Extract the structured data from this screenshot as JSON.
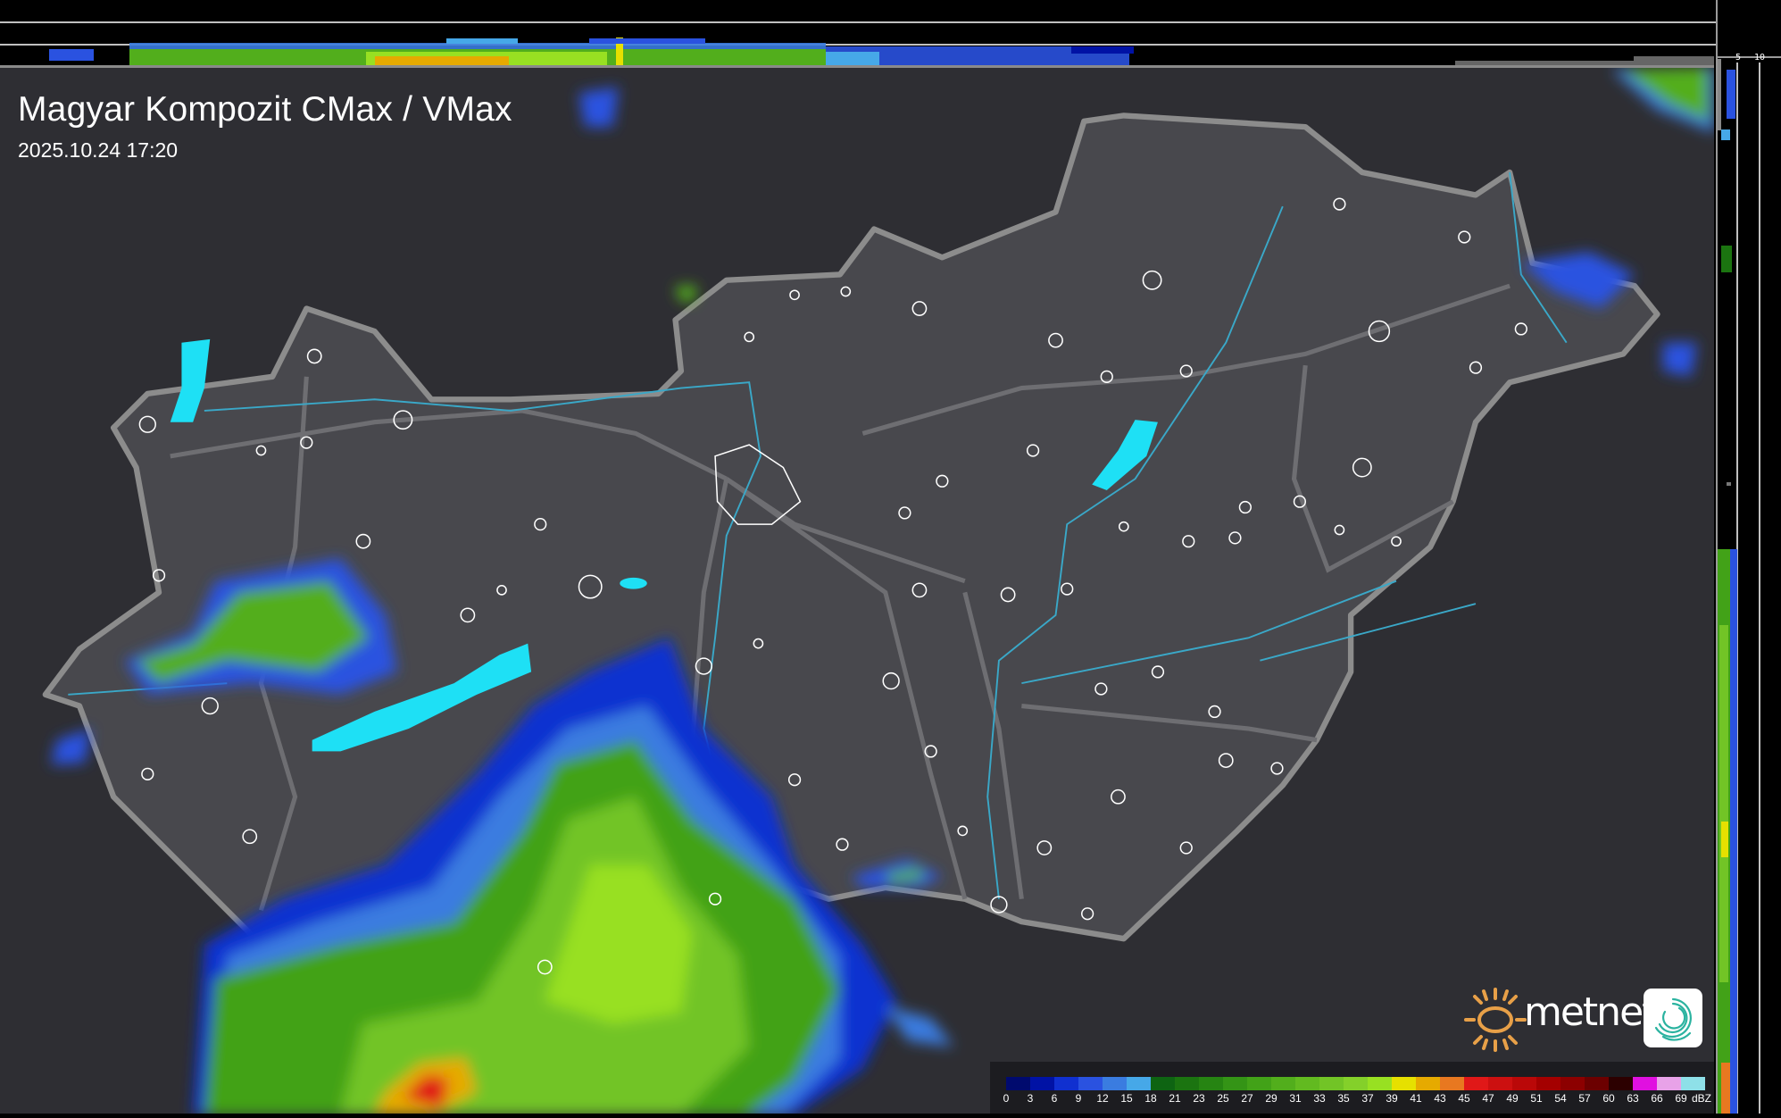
{
  "title": "Magyar Kompozit CMax / VMax",
  "timestamp": "2025.10.24 17:20",
  "top_profile": {
    "axis_labels": [
      "10",
      "5"
    ]
  },
  "side_profile": {
    "axis_labels": [
      "5",
      "10"
    ]
  },
  "logo": {
    "brand": "metnet",
    "icons": [
      "sun-logo-icon",
      "swirl-app-icon"
    ]
  },
  "colors": {
    "lakes": "#1ee0f5",
    "border": "#8c8c8c",
    "rivers": "#3aa8c8",
    "background": "#2e2e33",
    "country_fill": "#48484d"
  },
  "legend": {
    "unit": "dBZ",
    "items": [
      {
        "label": "0",
        "color": "#000a6e"
      },
      {
        "label": "3",
        "color": "#0012a5"
      },
      {
        "label": "6",
        "color": "#1030d0"
      },
      {
        "label": "9",
        "color": "#2a52e0"
      },
      {
        "label": "12",
        "color": "#3a7ce0"
      },
      {
        "label": "15",
        "color": "#46a8e8"
      },
      {
        "label": "18",
        "color": "#0e6412"
      },
      {
        "label": "21",
        "color": "#1b7410"
      },
      {
        "label": "23",
        "color": "#268412"
      },
      {
        "label": "25",
        "color": "#349416"
      },
      {
        "label": "27",
        "color": "#42a218"
      },
      {
        "label": "29",
        "color": "#52ae1c"
      },
      {
        "label": "31",
        "color": "#62ba20"
      },
      {
        "label": "33",
        "color": "#72c426"
      },
      {
        "label": "35",
        "color": "#84d02a"
      },
      {
        "label": "37",
        "color": "#98e022"
      },
      {
        "label": "39",
        "color": "#e6e000"
      },
      {
        "label": "41",
        "color": "#e6aa00"
      },
      {
        "label": "43",
        "color": "#e87820"
      },
      {
        "label": "45",
        "color": "#e01818"
      },
      {
        "label": "47",
        "color": "#cc1010"
      },
      {
        "label": "49",
        "color": "#ba0808"
      },
      {
        "label": "51",
        "color": "#a40000"
      },
      {
        "label": "54",
        "color": "#8c0000"
      },
      {
        "label": "57",
        "color": "#6c0000"
      },
      {
        "label": "60",
        "color": "#2c0000"
      },
      {
        "label": "63",
        "color": "#e010e0"
      },
      {
        "label": "66",
        "color": "#e8a2e8"
      },
      {
        "label": "69",
        "color": "#8ee0e8"
      }
    ]
  }
}
